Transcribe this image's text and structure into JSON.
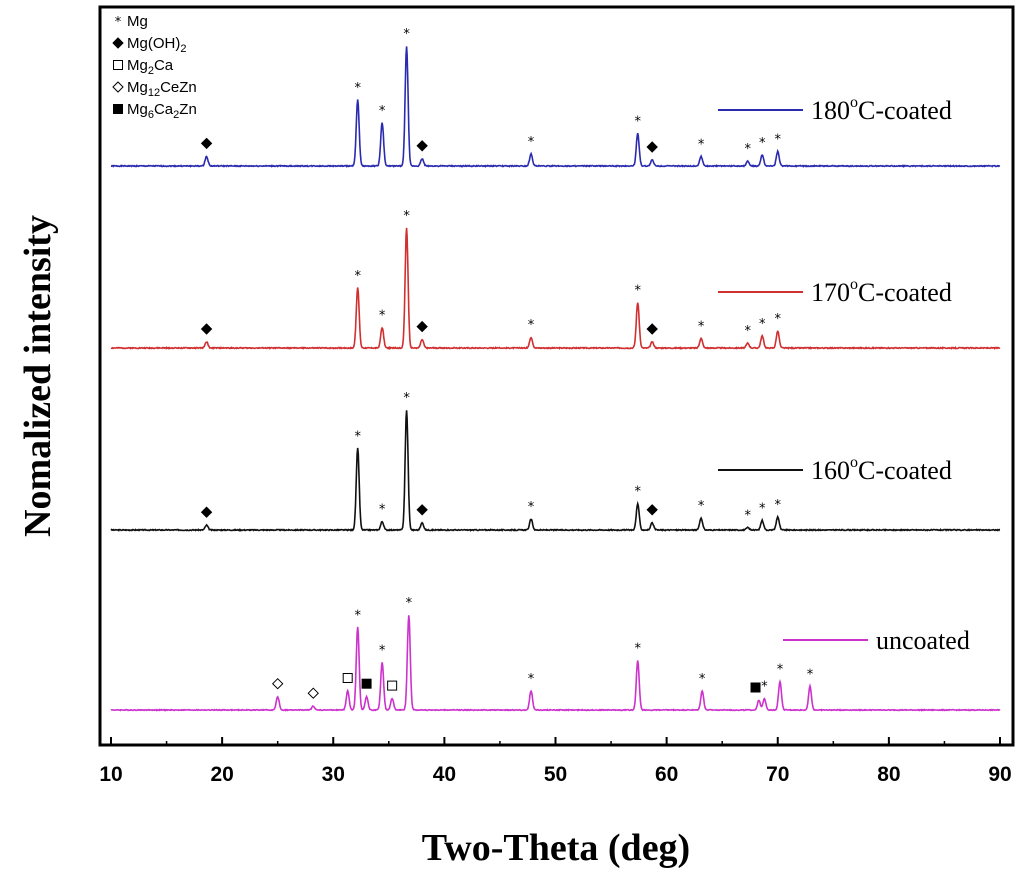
{
  "chart_data": {
    "type": "line",
    "xlabel": "Two-Theta (deg)",
    "ylabel": "Nomalized intensity",
    "xlim": [
      10,
      90
    ],
    "x_ticks": [
      "10",
      "20",
      "30",
      "40",
      "50",
      "60",
      "70",
      "80",
      "90"
    ],
    "grid": false,
    "series": [
      {
        "name": "180",
        "label_suffix": "C-coated",
        "label_sup": "o",
        "color": "#2b2bb0",
        "peaks": [
          [
            18.6,
            0.08
          ],
          [
            32.2,
            0.55
          ],
          [
            34.4,
            0.36
          ],
          [
            36.6,
            1.0
          ],
          [
            38.0,
            0.06
          ],
          [
            47.8,
            0.1
          ],
          [
            57.4,
            0.27
          ],
          [
            58.7,
            0.05
          ],
          [
            63.1,
            0.08
          ],
          [
            67.3,
            0.04
          ],
          [
            68.6,
            0.09
          ],
          [
            70.0,
            0.12
          ]
        ]
      },
      {
        "name": "170",
        "label_suffix": "C-coated",
        "label_sup": "o",
        "color": "#d03030",
        "peaks": [
          [
            18.6,
            0.05
          ],
          [
            32.2,
            0.5
          ],
          [
            34.4,
            0.17
          ],
          [
            36.6,
            1.0
          ],
          [
            38.0,
            0.07
          ],
          [
            47.8,
            0.09
          ],
          [
            57.4,
            0.38
          ],
          [
            58.7,
            0.05
          ],
          [
            63.1,
            0.08
          ],
          [
            67.3,
            0.04
          ],
          [
            68.6,
            0.1
          ],
          [
            70.0,
            0.14
          ]
        ]
      },
      {
        "name": "160",
        "label_suffix": "C-coated",
        "label_sup": "o",
        "color": "#111111",
        "peaks": [
          [
            18.6,
            0.04
          ],
          [
            32.2,
            0.68
          ],
          [
            34.4,
            0.07
          ],
          [
            36.6,
            1.0
          ],
          [
            38.0,
            0.06
          ],
          [
            47.8,
            0.09
          ],
          [
            57.4,
            0.22
          ],
          [
            58.7,
            0.06
          ],
          [
            63.1,
            0.1
          ],
          [
            67.3,
            0.02
          ],
          [
            68.6,
            0.08
          ],
          [
            70.0,
            0.11
          ]
        ]
      },
      {
        "name": "uncoated",
        "label_suffix": "",
        "label_sup": "",
        "color": "#cc33cc",
        "peaks": [
          [
            25.0,
            0.14
          ],
          [
            28.2,
            0.04
          ],
          [
            31.3,
            0.2
          ],
          [
            32.2,
            0.87
          ],
          [
            33.0,
            0.14
          ],
          [
            34.4,
            0.5
          ],
          [
            35.3,
            0.12
          ],
          [
            36.8,
            1.0
          ],
          [
            47.8,
            0.2
          ],
          [
            57.4,
            0.52
          ],
          [
            63.2,
            0.2
          ],
          [
            68.3,
            0.1
          ],
          [
            68.8,
            0.12
          ],
          [
            70.2,
            0.3
          ],
          [
            72.9,
            0.25
          ]
        ]
      }
    ],
    "phase_legend": [
      {
        "symbol": "star",
        "parts": [
          [
            "Mg",
            ""
          ]
        ]
      },
      {
        "symbol": "filled-diamond",
        "parts": [
          [
            "Mg(OH)",
            ""
          ],
          [
            "2",
            "sub"
          ]
        ]
      },
      {
        "symbol": "open-square",
        "parts": [
          [
            "Mg",
            ""
          ],
          [
            "2",
            "sub"
          ],
          [
            "Ca",
            ""
          ]
        ]
      },
      {
        "symbol": "open-diamond",
        "parts": [
          [
            "Mg",
            ""
          ],
          [
            "12",
            "sub"
          ],
          [
            "CeZn",
            ""
          ]
        ]
      },
      {
        "symbol": "filled-square",
        "parts": [
          [
            "Mg",
            ""
          ],
          [
            "6",
            "sub"
          ],
          [
            "Ca",
            ""
          ],
          [
            "2",
            "sub"
          ],
          [
            "Zn",
            ""
          ]
        ]
      }
    ],
    "markers": [
      {
        "series": 0,
        "symbol": "filled-diamond",
        "x": [
          18.6,
          38.0,
          58.7
        ]
      },
      {
        "series": 0,
        "symbol": "star",
        "x": [
          32.2,
          34.4,
          36.6,
          47.8,
          57.4,
          63.1,
          67.3,
          68.6,
          70.0
        ]
      },
      {
        "series": 1,
        "symbol": "filled-diamond",
        "x": [
          18.6,
          38.0,
          58.7
        ]
      },
      {
        "series": 1,
        "symbol": "star",
        "x": [
          32.2,
          34.4,
          36.6,
          47.8,
          57.4,
          63.1,
          67.3,
          68.6,
          70.0
        ]
      },
      {
        "series": 2,
        "symbol": "filled-diamond",
        "x": [
          18.6,
          38.0,
          58.7
        ]
      },
      {
        "series": 2,
        "symbol": "star",
        "x": [
          32.2,
          34.4,
          36.6,
          47.8,
          57.4,
          63.1,
          67.3,
          68.6,
          70.0
        ]
      },
      {
        "series": 3,
        "symbol": "open-diamond",
        "x": [
          25.0,
          28.2
        ]
      },
      {
        "series": 3,
        "symbol": "open-square",
        "x": [
          31.3,
          35.3
        ]
      },
      {
        "series": 3,
        "symbol": "filled-square",
        "x": [
          33.0,
          68.0
        ]
      },
      {
        "series": 3,
        "symbol": "star",
        "x": [
          32.2,
          34.4,
          36.8,
          47.8,
          57.4,
          63.2,
          68.8,
          70.2,
          72.9
        ]
      }
    ]
  }
}
